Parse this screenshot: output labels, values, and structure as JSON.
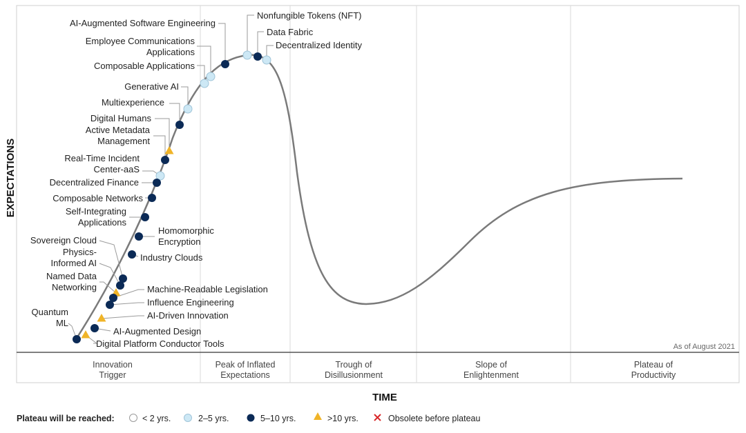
{
  "axes": {
    "y_label": "EXPECTATIONS",
    "x_label": "TIME"
  },
  "as_of": "As of August 2021",
  "phases": [
    {
      "lines": [
        "Innovation",
        "Trigger"
      ]
    },
    {
      "lines": [
        "Peak of Inflated",
        "Expectations"
      ]
    },
    {
      "lines": [
        "Trough of",
        "Disillusionment"
      ]
    },
    {
      "lines": [
        "Slope of",
        "Enlightenment"
      ]
    },
    {
      "lines": [
        "Plateau of",
        "Productivity"
      ]
    }
  ],
  "legend": {
    "title": "Plateau will be reached:",
    "items": [
      {
        "key": "lt2",
        "label": "< 2 yrs."
      },
      {
        "key": "2to5",
        "label": "2–5 yrs."
      },
      {
        "key": "5to10",
        "label": "5–10 yrs."
      },
      {
        "key": "gt10",
        "label": ">10 yrs."
      },
      {
        "key": "obsolete",
        "label": "Obsolete before plateau"
      }
    ]
  },
  "colors": {
    "curve": "#7a7a7a",
    "light_blue": "#cde8f5",
    "dark_blue": "#0b2a56",
    "yellow": "#f0b428",
    "obsolete": "#d9292b",
    "gridline": "#d8d8d8",
    "leader": "#9a9a9a"
  },
  "technologies": [
    {
      "name": [
        "Nonfungible Tokens (NFT)"
      ],
      "plateau": "2to5"
    },
    {
      "name": [
        "Data Fabric"
      ],
      "plateau": "5to10"
    },
    {
      "name": [
        "Decentralized Identity"
      ],
      "plateau": "2to5"
    },
    {
      "name": [
        "AI-Augmented Software Engineering"
      ],
      "plateau": "5to10"
    },
    {
      "name": [
        "Employee Communications",
        "Applications"
      ],
      "plateau": "2to5"
    },
    {
      "name": [
        "Composable Applications"
      ],
      "plateau": "2to5"
    },
    {
      "name": [
        "Generative AI"
      ],
      "plateau": "2to5"
    },
    {
      "name": [
        "Multiexperience"
      ],
      "plateau": "5to10"
    },
    {
      "name": [
        "Digital Humans"
      ],
      "plateau": "gt10"
    },
    {
      "name": [
        "Active Metadata",
        "Management"
      ],
      "plateau": "5to10"
    },
    {
      "name": [
        "Real-Time Incident",
        "Center-aaS"
      ],
      "plateau": "2to5"
    },
    {
      "name": [
        "Decentralized Finance"
      ],
      "plateau": "5to10"
    },
    {
      "name": [
        "Composable Networks"
      ],
      "plateau": "5to10"
    },
    {
      "name": [
        "Self-Integrating",
        "Applications"
      ],
      "plateau": "5to10"
    },
    {
      "name": [
        "Homomorphic",
        "Encryption"
      ],
      "plateau": "5to10"
    },
    {
      "name": [
        "Industry Clouds"
      ],
      "plateau": "5to10"
    },
    {
      "name": [
        "Sovereign Cloud"
      ],
      "plateau": "5to10"
    },
    {
      "name": [
        "Physics-",
        "Informed AI"
      ],
      "plateau": "5to10"
    },
    {
      "name": [
        "Named Data",
        "Networking"
      ],
      "plateau": "gt10"
    },
    {
      "name": [
        "Machine-Readable Legislation"
      ],
      "plateau": "5to10"
    },
    {
      "name": [
        "Influence Engineering"
      ],
      "plateau": "5to10"
    },
    {
      "name": [
        "AI-Driven Innovation"
      ],
      "plateau": "gt10"
    },
    {
      "name": [
        "Quantum",
        "ML"
      ],
      "plateau": "5to10"
    },
    {
      "name": [
        "AI-Augmented Design"
      ],
      "plateau": "5to10"
    },
    {
      "name": [
        "Digital Platform Conductor Tools"
      ],
      "plateau": "gt10"
    }
  ]
}
